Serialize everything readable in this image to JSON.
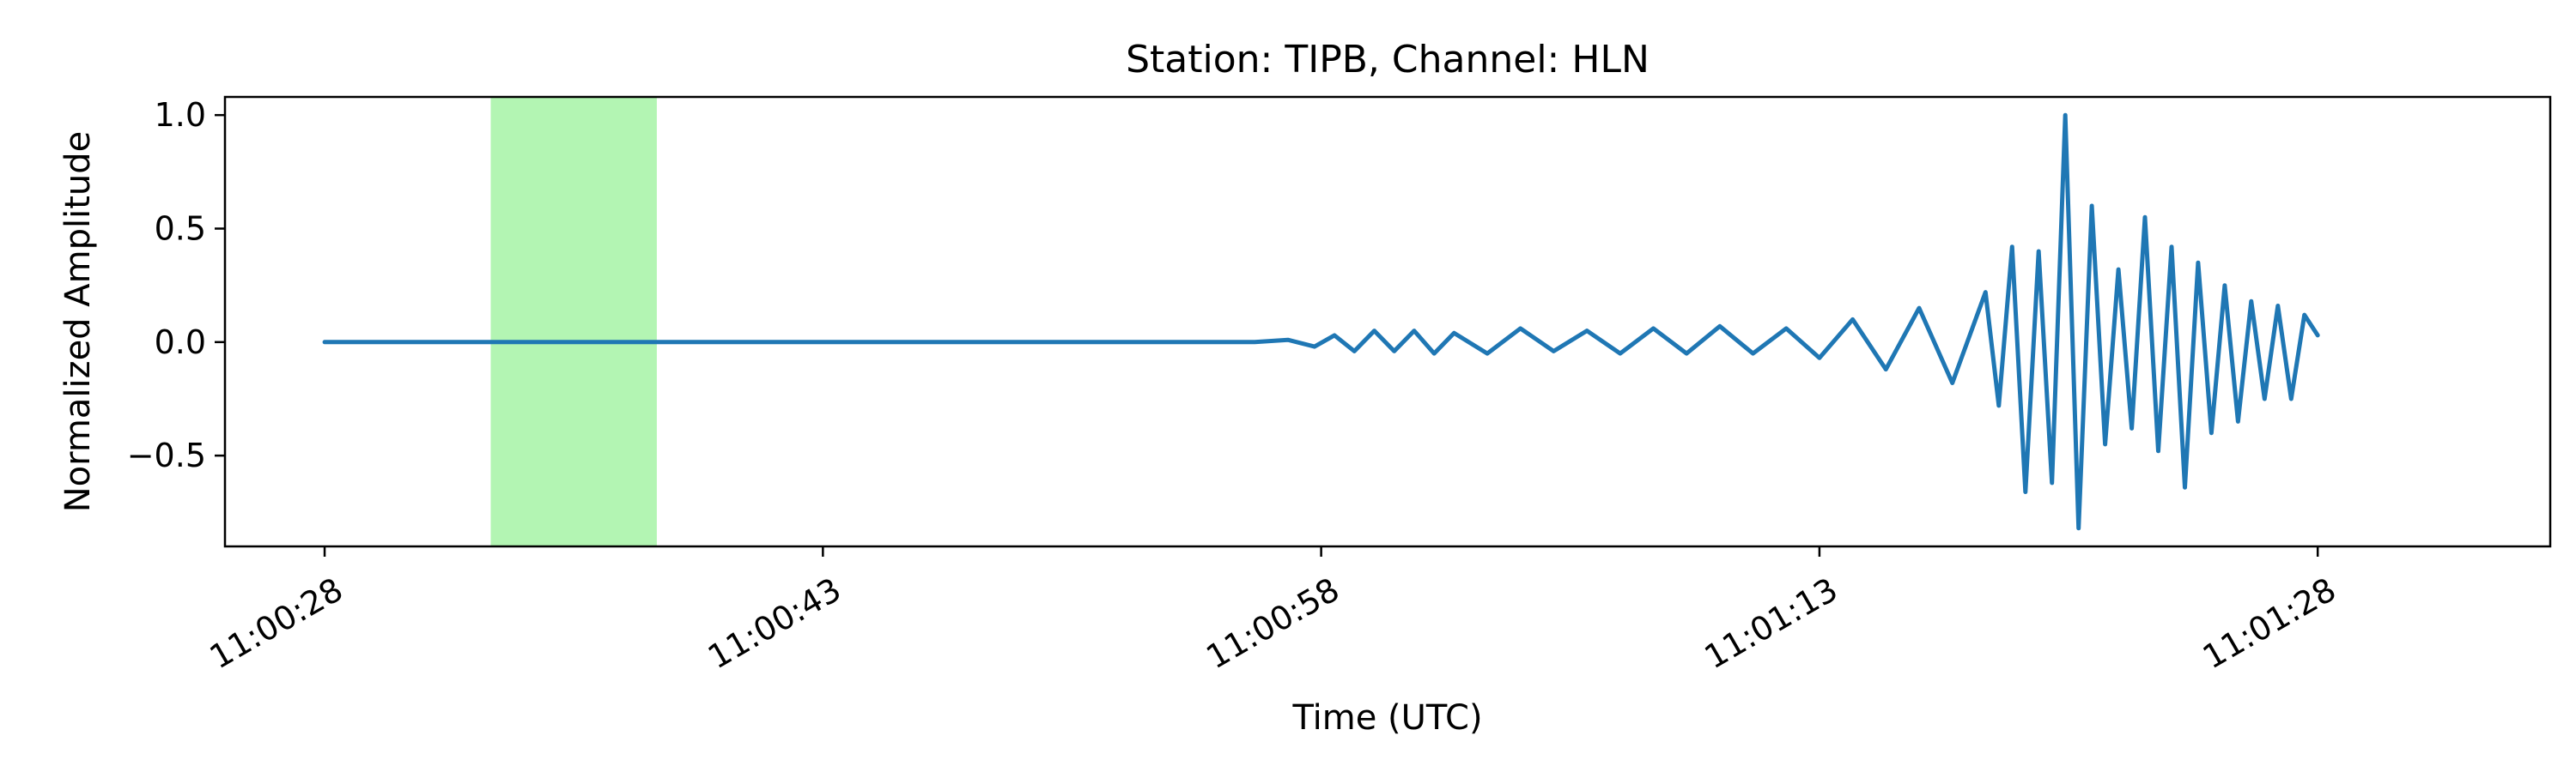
{
  "chart_data": {
    "type": "line",
    "title": "Station: TIPB, Channel: HLN",
    "xlabel": "Time (UTC)",
    "ylabel": "Normalized Amplitude",
    "x_unit": "seconds after 11:00:28",
    "xlim": [
      -3,
      67
    ],
    "ylim": [
      -0.9,
      1.08
    ],
    "x_ticks": [
      {
        "value": 0,
        "label": "11:00:28"
      },
      {
        "value": 15,
        "label": "11:00:43"
      },
      {
        "value": 30,
        "label": "11:00:58"
      },
      {
        "value": 45,
        "label": "11:01:13"
      },
      {
        "value": 60,
        "label": "11:01:28"
      }
    ],
    "y_ticks": [
      {
        "value": 1.0,
        "label": "1.0"
      },
      {
        "value": 0.5,
        "label": "0.5"
      },
      {
        "value": 0.0,
        "label": "0.0"
      },
      {
        "value": -0.5,
        "label": "−0.5"
      }
    ],
    "highlight_window": {
      "start": 5,
      "end": 10,
      "color": "#b3f5b3"
    },
    "series": [
      {
        "name": "HLN",
        "color": "#1f77b4",
        "x": [
          0,
          28,
          29,
          29.8,
          30.4,
          31.0,
          31.6,
          32.2,
          32.8,
          33.4,
          34.0,
          35.0,
          36.0,
          37.0,
          38.0,
          39.0,
          40.0,
          41.0,
          42.0,
          43.0,
          44.0,
          45.0,
          46.0,
          47.0,
          48.0,
          49.0,
          50.0,
          50.4,
          50.8,
          51.2,
          51.6,
          52.0,
          52.4,
          52.8,
          53.2,
          53.6,
          54.0,
          54.4,
          54.8,
          55.2,
          55.6,
          56.0,
          56.4,
          56.8,
          57.2,
          57.6,
          58.0,
          58.4,
          58.8,
          59.2,
          59.6,
          60.0
        ],
        "y": [
          0.0,
          0.0,
          0.01,
          -0.02,
          0.03,
          -0.04,
          0.05,
          -0.04,
          0.05,
          -0.05,
          0.04,
          -0.05,
          0.06,
          -0.04,
          0.05,
          -0.05,
          0.06,
          -0.05,
          0.07,
          -0.05,
          0.06,
          -0.07,
          0.1,
          -0.12,
          0.15,
          -0.18,
          0.22,
          -0.28,
          0.42,
          -0.66,
          0.4,
          -0.62,
          1.0,
          -0.82,
          0.6,
          -0.45,
          0.32,
          -0.38,
          0.55,
          -0.48,
          0.42,
          -0.64,
          0.35,
          -0.4,
          0.25,
          -0.35,
          0.18,
          -0.25,
          0.16,
          -0.25,
          0.12,
          0.03
        ]
      }
    ]
  }
}
